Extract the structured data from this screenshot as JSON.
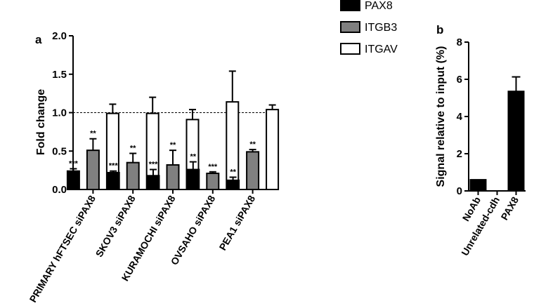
{
  "chart_data": [
    {
      "panel_label": "a",
      "type": "bar",
      "ylabel": "Fold change",
      "ylim": [
        0,
        2.0
      ],
      "yticks": [
        "0.0",
        "0.5",
        "1.0",
        "1.5",
        "2.0"
      ],
      "reference_line": 1.0,
      "categories": [
        "PRIMARY hFTSEC siPAX8",
        "SKOV3 siPAX8",
        "KURAMOCHI siPAX8",
        "OVSAHO siPAX8",
        "PEA1 siPAX8"
      ],
      "series": [
        {
          "name": "PAX8",
          "color": "#000000",
          "values": [
            0.24,
            0.22,
            0.18,
            0.26,
            0.12
          ],
          "errors": [
            0.03,
            0.02,
            0.08,
            0.1,
            0.04
          ],
          "significance": [
            "***",
            "***",
            "***",
            "**",
            "**"
          ]
        },
        {
          "name": "ITGB3",
          "color": "#808080",
          "values": [
            0.51,
            0.35,
            0.32,
            0.21,
            0.49
          ],
          "errors": [
            0.15,
            0.12,
            0.19,
            0.02,
            0.03
          ],
          "significance": [
            "**",
            "**",
            "**",
            "***",
            "**"
          ]
        },
        {
          "name": "ITGAV",
          "color": "#ffffff",
          "values": [
            0.99,
            0.99,
            0.91,
            1.14,
            1.04
          ],
          "errors": [
            0.12,
            0.21,
            0.13,
            0.4,
            0.06
          ],
          "significance": [
            "",
            "",
            "",
            "",
            ""
          ]
        }
      ],
      "legend": "top"
    },
    {
      "panel_label": "b",
      "type": "bar",
      "ylabel": "Signal relative to input (%)",
      "ylim": [
        0,
        8
      ],
      "yticks": [
        "0",
        "2",
        "4",
        "6",
        "8"
      ],
      "categories": [
        "NoAb",
        "Unrelated-cdh",
        "PAX8"
      ],
      "values": [
        0.6,
        0.0,
        5.35
      ],
      "errors": [
        0.0,
        0.0,
        0.78
      ],
      "color": "#000000"
    }
  ]
}
